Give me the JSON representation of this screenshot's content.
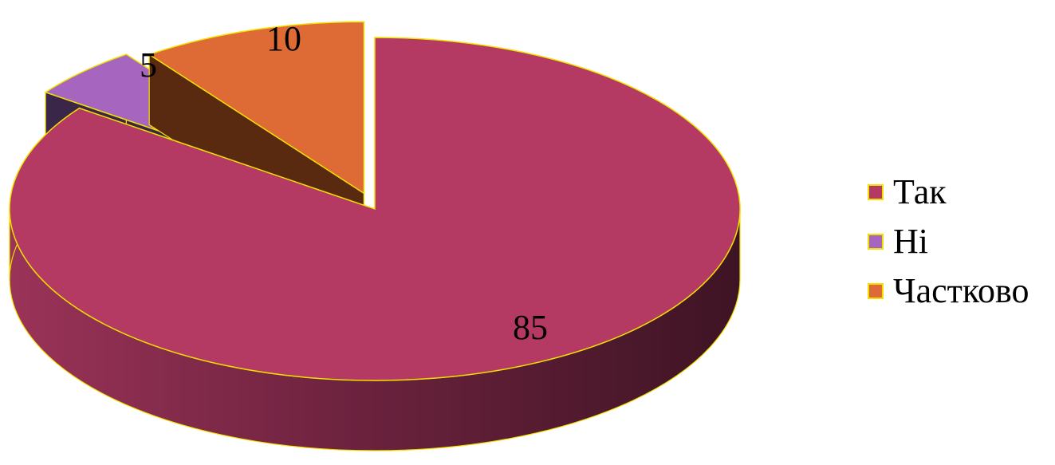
{
  "chart_data": {
    "type": "pie",
    "style": "3d-exploded",
    "categories": [
      "Так",
      "Ні",
      "Частково"
    ],
    "values": [
      85,
      5,
      10
    ],
    "data_labels": [
      "85",
      "5",
      "10"
    ],
    "colors": {
      "Так": "#b43a63",
      "Ні": "#a666c0",
      "Частково": "#de6a35"
    },
    "side_colors": {
      "Так": "#5a1c34",
      "Ні": "#3a2648",
      "Частково": "#5a2a10"
    },
    "outline_color": "#f2e000",
    "legend": {
      "position": "right",
      "items": [
        {
          "label": "Так",
          "color": "#b43a63"
        },
        {
          "label": "Ні",
          "color": "#a666c0"
        },
        {
          "label": "Частково",
          "color": "#de6a35"
        }
      ]
    },
    "title": ""
  }
}
